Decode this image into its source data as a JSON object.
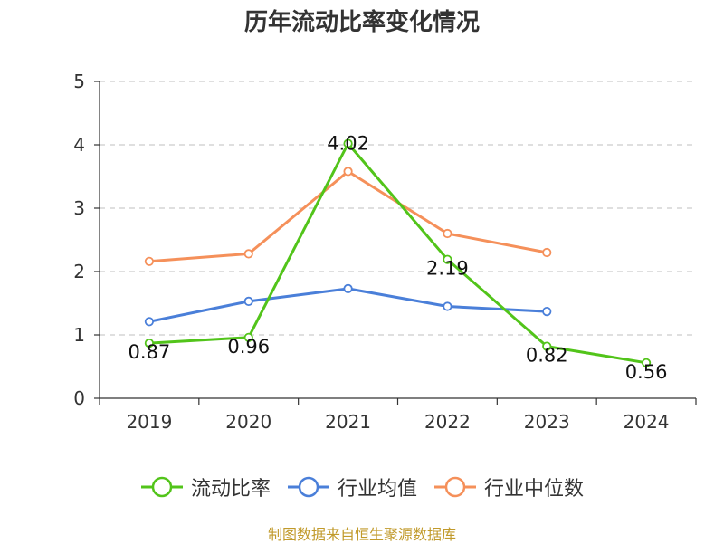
{
  "chart_data": {
    "type": "line",
    "title": "历年流动比率变化情况",
    "categories": [
      "2019",
      "2020",
      "2021",
      "2022",
      "2023",
      "2024"
    ],
    "ylim": [
      0,
      5
    ],
    "yticks": [
      "0",
      "1",
      "2",
      "3",
      "4",
      "5"
    ],
    "grid": true,
    "legend_position": "bottom",
    "series": [
      {
        "name": "流动比率",
        "color": "#52c41a",
        "values": [
          0.87,
          0.96,
          4.02,
          2.19,
          0.82,
          0.56
        ],
        "labels": [
          "0.87",
          "0.96",
          "4.02",
          "2.19",
          "0.82",
          "0.56"
        ]
      },
      {
        "name": "行业均值",
        "color": "#4a7fd9",
        "values": [
          1.21,
          1.53,
          1.73,
          1.45,
          1.37,
          null
        ]
      },
      {
        "name": "行业中位数",
        "color": "#f5905a",
        "values": [
          2.16,
          2.28,
          3.58,
          2.6,
          2.3,
          null
        ]
      }
    ]
  },
  "source": "制图数据来自恒生聚源数据库"
}
